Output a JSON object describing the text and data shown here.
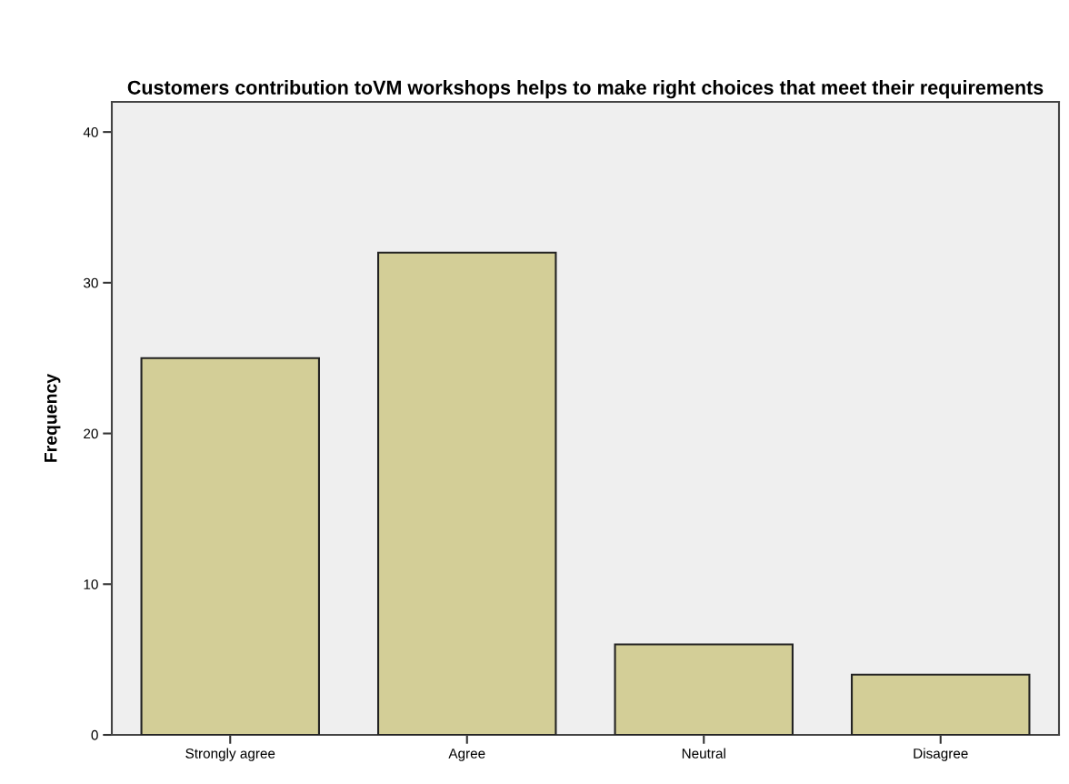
{
  "chart_data": {
    "type": "bar",
    "title": "Customers contribution toVM workshops helps to make right choices that meet their requirements",
    "ylabel": "Frequency",
    "categories": [
      "Strongly agree",
      "Agree",
      "Neutral",
      "Disagree"
    ],
    "values": [
      25,
      32,
      6,
      4
    ],
    "color": "#d3ce97",
    "ylim": [
      0,
      42
    ],
    "yticks": [
      0,
      10,
      20,
      30,
      40
    ],
    "grid": false,
    "legend": false
  }
}
